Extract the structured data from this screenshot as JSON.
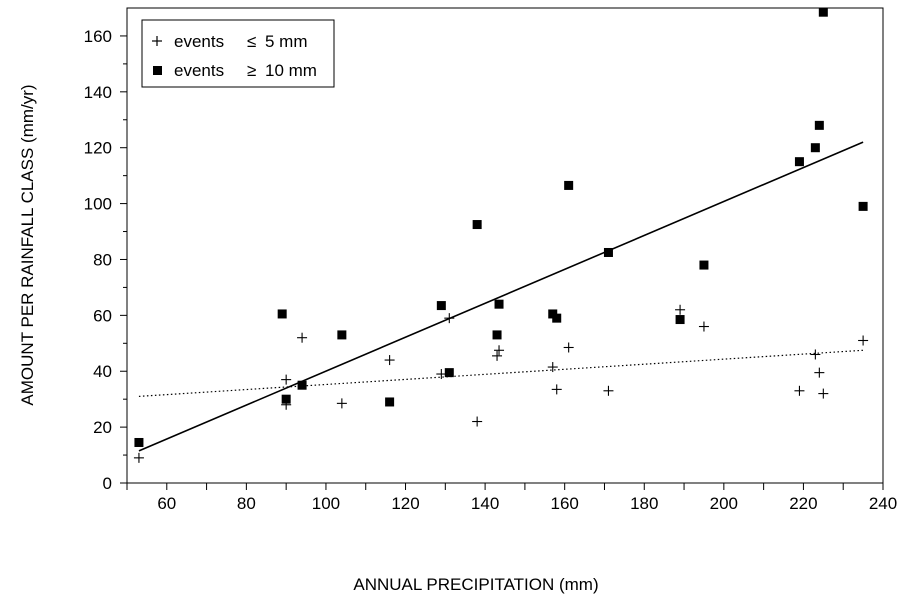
{
  "chart_data": {
    "type": "scatter",
    "title": "",
    "xlabel": "ANNUAL PRECIPITATION (mm)",
    "ylabel": "AMOUNT PER RAINFALL CLASS (mm/yr)",
    "xlim": [
      50,
      240
    ],
    "ylim": [
      0,
      170
    ],
    "xticks": [
      60,
      80,
      100,
      120,
      140,
      160,
      180,
      200,
      220,
      240
    ],
    "yticks": [
      0,
      20,
      40,
      60,
      80,
      100,
      120,
      140,
      160
    ],
    "grid": false,
    "legend_position": "top-left",
    "series": [
      {
        "name": "events ≤ 5 mm",
        "legend_word": "events",
        "legend_symbol": "≤",
        "legend_value": "5 mm",
        "marker": "plus",
        "points": [
          [
            53,
            9
          ],
          [
            90,
            28
          ],
          [
            90,
            37
          ],
          [
            94,
            52
          ],
          [
            104,
            28.5
          ],
          [
            116,
            44
          ],
          [
            129,
            39
          ],
          [
            131,
            59
          ],
          [
            138,
            22
          ],
          [
            143,
            45.5
          ],
          [
            143.5,
            47.5
          ],
          [
            157,
            41.5
          ],
          [
            158,
            33.5
          ],
          [
            161,
            48.5
          ],
          [
            171,
            33
          ],
          [
            189,
            62
          ],
          [
            195,
            56
          ],
          [
            219,
            33
          ],
          [
            223,
            46
          ],
          [
            224,
            39.5
          ],
          [
            225,
            32
          ],
          [
            235,
            51
          ]
        ],
        "trendline": {
          "style": "dotted",
          "x": [
            53,
            235
          ],
          "y": [
            31,
            47.5
          ]
        }
      },
      {
        "name": "events ≥ 10 mm",
        "legend_word": "events",
        "legend_symbol": "≥",
        "legend_value": "10 mm",
        "marker": "square",
        "points": [
          [
            53,
            14.5
          ],
          [
            89,
            60.5
          ],
          [
            90,
            30
          ],
          [
            94,
            35
          ],
          [
            104,
            53
          ],
          [
            116,
            29
          ],
          [
            129,
            63.5
          ],
          [
            131,
            39.5
          ],
          [
            138,
            92.5
          ],
          [
            143,
            53
          ],
          [
            143.5,
            64
          ],
          [
            157,
            60.5
          ],
          [
            158,
            59
          ],
          [
            161,
            106.5
          ],
          [
            171,
            82.5
          ],
          [
            189,
            58.5
          ],
          [
            195,
            78
          ],
          [
            219,
            115
          ],
          [
            223,
            120
          ],
          [
            224,
            128
          ],
          [
            225,
            168.5
          ],
          [
            235,
            99
          ]
        ],
        "trendline": {
          "style": "solid",
          "x": [
            53,
            235
          ],
          "y": [
            11.5,
            122
          ]
        }
      }
    ]
  }
}
